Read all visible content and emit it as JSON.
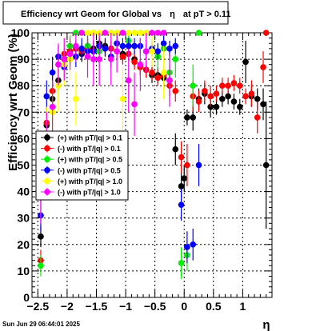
{
  "chart_data": {
    "type": "scatter",
    "title_prefix": "Efficiency wrt Geom for Global vs",
    "title_symbol": "η",
    "title_suffix": "at pT > 0.11",
    "xlabel": "η",
    "ylabel": "Efficiency wrt Geom (%)",
    "xlim": [
      -2.6,
      1.5
    ],
    "ylim": [
      0,
      100
    ],
    "xticks": [
      {
        "value": -2.5,
        "label": "−2.5"
      },
      {
        "value": -2.0,
        "label": "−2"
      },
      {
        "value": -1.5,
        "label": "−1.5"
      },
      {
        "value": -1.0,
        "label": "−1"
      },
      {
        "value": -0.5,
        "label": "−0.5"
      },
      {
        "value": 0.0,
        "label": "0"
      },
      {
        "value": 0.5,
        "label": "0.5"
      },
      {
        "value": 1.0,
        "label": "1"
      }
    ],
    "yticks": [
      0,
      10,
      20,
      30,
      40,
      50,
      60,
      70,
      80,
      90,
      100
    ],
    "grid": true,
    "legend_position": "left-center",
    "timestamp": "Sun Jun 29 06:44:01 2025",
    "series": [
      {
        "name": "(+) with pT/|q| > 0.1",
        "color": "#000000",
        "marker": "circle",
        "x": [
          -2.45,
          -2.35,
          -2.25,
          -2.15,
          -2.05,
          -1.95,
          -1.85,
          -1.75,
          -1.65,
          -1.55,
          -1.45,
          -1.35,
          -1.25,
          -1.15,
          -1.05,
          -0.95,
          -0.85,
          -0.75,
          -0.65,
          -0.55,
          -0.45,
          -0.35,
          -0.25,
          -0.15,
          -0.05,
          0.0,
          0.05,
          0.15,
          0.25,
          0.35,
          0.45,
          0.55,
          0.65,
          0.75,
          0.85,
          0.95,
          1.05,
          1.15,
          1.25,
          1.35,
          1.4
        ],
        "y": [
          23,
          65,
          75,
          82,
          90,
          93,
          94,
          92,
          95,
          94,
          96,
          95,
          94,
          96,
          92,
          95,
          90,
          87,
          86,
          84,
          84,
          83,
          82,
          56,
          42,
          45,
          68,
          68,
          75,
          77,
          72,
          72,
          75,
          76,
          74,
          72,
          89,
          76,
          75,
          73,
          50
        ],
        "yerr": [
          4,
          6,
          6,
          4,
          3,
          3,
          3,
          3,
          3,
          3,
          2,
          3,
          3,
          3,
          3,
          3,
          3,
          3,
          3,
          3,
          3,
          3,
          3,
          6,
          5,
          5,
          3,
          5,
          4,
          4,
          4,
          3,
          3,
          3,
          3,
          3,
          8,
          4,
          4,
          6,
          24
        ]
      },
      {
        "name": "(-) with pT/|q| > 0.1",
        "color": "#ff0000",
        "marker": "circle",
        "x": [
          -2.45,
          -2.35,
          -2.25,
          -2.15,
          -2.05,
          -1.95,
          -1.85,
          -1.75,
          -1.65,
          -1.55,
          -1.45,
          -1.35,
          -1.25,
          -1.15,
          -1.05,
          -0.95,
          -0.85,
          -0.75,
          -0.65,
          -0.55,
          -0.45,
          -0.35,
          -0.25,
          -0.15,
          -0.05,
          0.05,
          0.15,
          0.25,
          0.35,
          0.45,
          0.55,
          0.65,
          0.75,
          0.85,
          0.95,
          1.05,
          1.15,
          1.25,
          1.35,
          1.4
        ],
        "y": [
          14,
          66,
          78,
          88,
          92,
          93,
          94,
          93,
          94,
          93,
          95,
          94,
          94,
          93,
          91,
          92,
          89,
          87,
          86,
          85,
          83,
          84,
          80,
          78,
          53,
          50,
          76,
          74,
          78,
          76,
          77,
          80,
          80,
          81,
          80,
          76,
          77,
          68,
          87,
          100
        ],
        "yerr": [
          4,
          6,
          6,
          4,
          3,
          3,
          3,
          3,
          3,
          3,
          2,
          3,
          3,
          3,
          3,
          3,
          3,
          3,
          3,
          3,
          3,
          3,
          4,
          4,
          6,
          8,
          6,
          4,
          4,
          4,
          3,
          3,
          3,
          3,
          3,
          3,
          5,
          6,
          6,
          0
        ]
      },
      {
        "name": "(+) with pT/|q| > 0.5",
        "color": "#00ee00",
        "marker": "circle",
        "x": [
          -2.45,
          -2.35,
          -2.25,
          -2.15,
          -2.05,
          -1.95,
          -1.85,
          -1.75,
          -1.65,
          -1.55,
          -1.45,
          -1.35,
          -1.25,
          -1.15,
          -1.05,
          -0.95,
          -0.85,
          -0.75,
          -0.65,
          -0.55,
          -0.45,
          -0.35,
          -0.25,
          -0.15,
          -0.05,
          0.05,
          0.15,
          0.25
        ],
        "y": [
          12,
          60,
          72,
          80,
          88,
          95,
          100,
          100,
          95,
          100,
          93,
          100,
          100,
          100,
          100,
          97,
          100,
          100,
          100,
          100,
          91,
          94,
          85,
          90,
          13,
          16,
          80,
          100
        ],
        "yerr": [
          4,
          8,
          8,
          6,
          5,
          4,
          0,
          0,
          5,
          0,
          6,
          0,
          0,
          0,
          0,
          3,
          0,
          0,
          0,
          0,
          5,
          5,
          8,
          7,
          6,
          6,
          8,
          0
        ]
      },
      {
        "name": "(-) with pT/|q| > 0.5",
        "color": "#0000ff",
        "marker": "circle",
        "x": [
          -2.45,
          -2.35,
          -2.25,
          -2.15,
          -2.05,
          -1.95,
          -1.85,
          -1.75,
          -1.65,
          -1.55,
          -1.45,
          -1.35,
          -1.25,
          -1.15,
          -1.05,
          -0.95,
          -0.85,
          -0.75,
          -0.65,
          -0.55,
          -0.45,
          -0.35,
          -0.25,
          -0.15,
          -0.05,
          0.05,
          0.15,
          0.25
        ],
        "y": [
          31,
          76,
          85,
          91,
          87,
          92,
          91,
          94,
          93,
          93,
          95,
          94,
          91,
          96,
          95,
          95,
          95,
          95,
          93,
          94,
          93,
          96,
          94,
          95,
          35,
          19,
          20,
          50
        ],
        "yerr": [
          6,
          6,
          6,
          4,
          4,
          4,
          4,
          4,
          3,
          3,
          3,
          3,
          4,
          3,
          3,
          3,
          3,
          3,
          3,
          3,
          3,
          3,
          3,
          3,
          6,
          6,
          6,
          8
        ]
      },
      {
        "name": "(+) with pT/|q| > 1.0",
        "color": "#ffff00",
        "marker": "circle",
        "x": [
          -2.45,
          -2.35,
          -2.25,
          -2.15,
          -2.05,
          -1.95,
          -1.85,
          -1.75,
          -1.65,
          -1.55,
          -1.45,
          -1.35,
          -1.25,
          -1.15,
          -1.05,
          -0.95,
          -0.85,
          -0.75,
          -0.65,
          -0.55,
          -0.45,
          -0.35
        ],
        "y": [
          40,
          60,
          70,
          80,
          88,
          90,
          75,
          100,
          100,
          100,
          100,
          100,
          100,
          100,
          75,
          100,
          100,
          100,
          100,
          93,
          100,
          85
        ],
        "yerr": [
          10,
          12,
          10,
          10,
          8,
          8,
          10,
          0,
          0,
          0,
          0,
          0,
          0,
          0,
          12,
          0,
          0,
          0,
          0,
          6,
          0,
          10
        ]
      },
      {
        "name": "(-) with pT/|q| > 1.0",
        "color": "#ff00ff",
        "marker": "circle",
        "x": [
          -2.45,
          -2.35,
          -2.25,
          -2.15,
          -2.05,
          -1.95,
          -1.85,
          -1.75,
          -1.65,
          -1.55,
          -1.45,
          -1.35,
          -1.25,
          -1.15,
          -1.05,
          -0.95,
          -0.85,
          -0.75,
          -0.65,
          -0.55,
          -0.45,
          -0.35,
          -0.25
        ],
        "y": [
          40,
          58,
          72,
          88,
          90,
          92,
          95,
          100,
          91,
          90,
          90,
          100,
          90,
          93,
          100,
          82,
          73,
          88,
          93,
          100,
          100,
          100,
          82
        ],
        "yerr": [
          12,
          12,
          10,
          8,
          8,
          6,
          6,
          0,
          8,
          10,
          10,
          0,
          10,
          8,
          0,
          12,
          12,
          10,
          8,
          0,
          0,
          0,
          10
        ]
      }
    ]
  }
}
